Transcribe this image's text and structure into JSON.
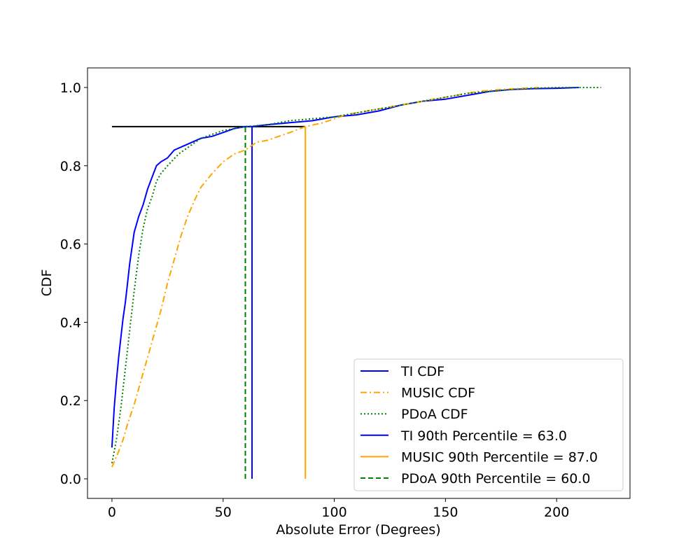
{
  "chart_data": {
    "type": "line",
    "title": "",
    "xlabel": "Absolute Error (Degrees)",
    "ylabel": "CDF",
    "xlim": [
      -11,
      233
    ],
    "ylim": [
      -0.05,
      1.05
    ],
    "xticks": [
      0,
      50,
      100,
      150,
      200
    ],
    "yticks": [
      0.0,
      0.2,
      0.4,
      0.6,
      0.8,
      1.0
    ],
    "xtick_labels": [
      "0",
      "50",
      "100",
      "150",
      "200"
    ],
    "ytick_labels": [
      "0.0",
      "0.2",
      "0.4",
      "0.6",
      "0.8",
      "1.0"
    ],
    "grid": false,
    "legend_position": "lower-right",
    "series": [
      {
        "name": "TI CDF",
        "style": "solid",
        "color": "#0000ff",
        "points": [
          [
            0,
            0.08
          ],
          [
            1,
            0.18
          ],
          [
            2,
            0.25
          ],
          [
            3,
            0.31
          ],
          [
            4,
            0.36
          ],
          [
            5,
            0.41
          ],
          [
            6,
            0.45
          ],
          [
            7,
            0.5
          ],
          [
            8,
            0.55
          ],
          [
            9,
            0.59
          ],
          [
            10,
            0.63
          ],
          [
            12,
            0.67
          ],
          [
            14,
            0.7
          ],
          [
            16,
            0.74
          ],
          [
            18,
            0.77
          ],
          [
            20,
            0.8
          ],
          [
            22,
            0.81
          ],
          [
            25,
            0.82
          ],
          [
            28,
            0.84
          ],
          [
            32,
            0.85
          ],
          [
            36,
            0.86
          ],
          [
            40,
            0.87
          ],
          [
            45,
            0.875
          ],
          [
            50,
            0.885
          ],
          [
            55,
            0.895
          ],
          [
            60,
            0.9
          ],
          [
            63,
            0.9
          ],
          [
            70,
            0.905
          ],
          [
            80,
            0.91
          ],
          [
            90,
            0.915
          ],
          [
            100,
            0.925
          ],
          [
            110,
            0.93
          ],
          [
            120,
            0.94
          ],
          [
            130,
            0.955
          ],
          [
            140,
            0.965
          ],
          [
            150,
            0.97
          ],
          [
            160,
            0.98
          ],
          [
            170,
            0.99
          ],
          [
            180,
            0.995
          ],
          [
            190,
            0.997
          ],
          [
            200,
            0.998
          ],
          [
            210,
            1.0
          ]
        ]
      },
      {
        "name": "MUSIC CDF",
        "style": "dashdot",
        "color": "#ffa500",
        "points": [
          [
            0,
            0.03
          ],
          [
            3,
            0.07
          ],
          [
            5,
            0.1
          ],
          [
            7,
            0.14
          ],
          [
            10,
            0.19
          ],
          [
            13,
            0.25
          ],
          [
            16,
            0.31
          ],
          [
            19,
            0.37
          ],
          [
            22,
            0.43
          ],
          [
            25,
            0.5
          ],
          [
            28,
            0.56
          ],
          [
            31,
            0.62
          ],
          [
            34,
            0.67
          ],
          [
            37,
            0.71
          ],
          [
            40,
            0.745
          ],
          [
            45,
            0.78
          ],
          [
            50,
            0.81
          ],
          [
            55,
            0.83
          ],
          [
            60,
            0.84
          ],
          [
            65,
            0.86
          ],
          [
            70,
            0.865
          ],
          [
            75,
            0.875
          ],
          [
            80,
            0.885
          ],
          [
            87,
            0.9
          ],
          [
            95,
            0.91
          ],
          [
            105,
            0.93
          ],
          [
            115,
            0.94
          ],
          [
            125,
            0.95
          ],
          [
            135,
            0.96
          ],
          [
            145,
            0.97
          ],
          [
            155,
            0.98
          ],
          [
            165,
            0.99
          ],
          [
            175,
            0.995
          ],
          [
            185,
            0.998
          ],
          [
            192,
            1.0
          ]
        ]
      },
      {
        "name": "PDoA CDF",
        "style": "dotted",
        "color": "#008000",
        "points": [
          [
            0,
            0.04
          ],
          [
            2,
            0.1
          ],
          [
            4,
            0.18
          ],
          [
            6,
            0.28
          ],
          [
            8,
            0.38
          ],
          [
            10,
            0.48
          ],
          [
            12,
            0.57
          ],
          [
            14,
            0.64
          ],
          [
            16,
            0.69
          ],
          [
            18,
            0.72
          ],
          [
            20,
            0.76
          ],
          [
            22,
            0.78
          ],
          [
            25,
            0.8
          ],
          [
            30,
            0.83
          ],
          [
            35,
            0.85
          ],
          [
            40,
            0.87
          ],
          [
            45,
            0.88
          ],
          [
            50,
            0.89
          ],
          [
            55,
            0.895
          ],
          [
            60,
            0.9
          ],
          [
            70,
            0.905
          ],
          [
            80,
            0.915
          ],
          [
            90,
            0.92
          ],
          [
            100,
            0.925
          ],
          [
            110,
            0.935
          ],
          [
            120,
            0.945
          ],
          [
            130,
            0.955
          ],
          [
            140,
            0.965
          ],
          [
            150,
            0.975
          ],
          [
            160,
            0.985
          ],
          [
            170,
            0.99
          ],
          [
            180,
            0.995
          ],
          [
            190,
            0.998
          ],
          [
            200,
            1.0
          ],
          [
            220,
            1.0
          ]
        ]
      }
    ],
    "percentile_lines": [
      {
        "name": "TI 90th Percentile = 63.0",
        "x": 63.0,
        "y": 0.9,
        "style": "solid",
        "color": "#0000ff"
      },
      {
        "name": "MUSIC 90th Percentile = 87.0",
        "x": 87.0,
        "y": 0.9,
        "style": "solid",
        "color": "#ffa500"
      },
      {
        "name": "PDoA 90th Percentile = 60.0",
        "x": 60.0,
        "y": 0.9,
        "style": "dashed",
        "color": "#008000"
      }
    ],
    "reference_line": {
      "y": 0.9,
      "x_from": 0,
      "x_to": 87,
      "color": "#000000"
    }
  }
}
